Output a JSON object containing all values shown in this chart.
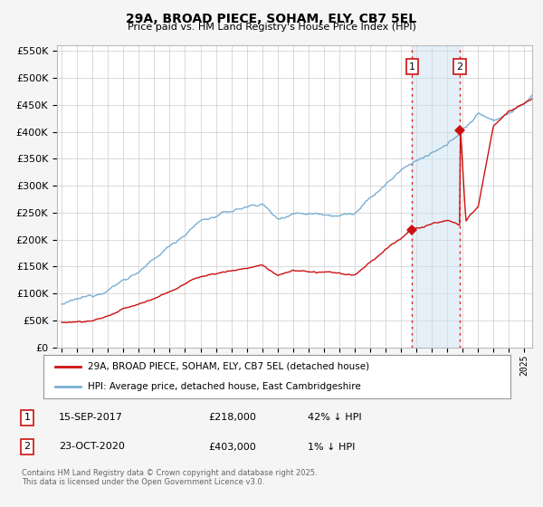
{
  "title": "29A, BROAD PIECE, SOHAM, ELY, CB7 5EL",
  "subtitle": "Price paid vs. HM Land Registry's House Price Index (HPI)",
  "ylim": [
    0,
    560000
  ],
  "yticks": [
    0,
    50000,
    100000,
    150000,
    200000,
    250000,
    300000,
    350000,
    400000,
    450000,
    500000,
    550000
  ],
  "bg_color": "#f5f5f5",
  "plot_bg_color": "#ffffff",
  "grid_color": "#cccccc",
  "hpi_color": "#7aafd4",
  "price_color": "#cc1111",
  "vline_color": "#dd2222",
  "marker1_year": 2017.72,
  "marker2_year": 2020.81,
  "marker1_price": 218000,
  "marker2_price": 403000,
  "legend_label_price": "29A, BROAD PIECE, SOHAM, ELY, CB7 5EL (detached house)",
  "legend_label_hpi": "HPI: Average price, detached house, East Cambridgeshire",
  "table_row1": [
    "1",
    "15-SEP-2017",
    "£218,000",
    "42% ↓ HPI"
  ],
  "table_row2": [
    "2",
    "23-OCT-2020",
    "£403,000",
    "1% ↓ HPI"
  ],
  "footer": "Contains HM Land Registry data © Crown copyright and database right 2025.\nThis data is licensed under the Open Government Licence v3.0.",
  "x_start_year": 1995,
  "x_end_year": 2025.5
}
